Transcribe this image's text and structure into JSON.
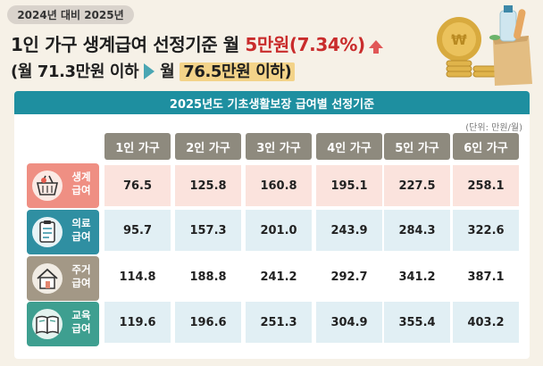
{
  "header": {
    "year_pill": "2024년 대비 2025년",
    "headline_part1": "1인 가구 생계급여 선정기준 월 ",
    "headline_accent": "5만원(7.34%)",
    "subline_open": "(월 71.3만원 이하",
    "subline_mid": "월 ",
    "subline_highlight": "76.5만원 이하)"
  },
  "panel": {
    "title": "2025년도 기초생활보장 급여별 선정기준",
    "unit": "(단위: 만원/월)"
  },
  "table": {
    "columns": [
      "1인 가구",
      "2인 가구",
      "3인 가구",
      "4인 가구",
      "5인 가구",
      "6인 가구"
    ],
    "rows": [
      {
        "label1": "생계",
        "label2": "급여",
        "icon": "market-basket-icon",
        "values": [
          "76.5",
          "125.8",
          "160.8",
          "195.1",
          "227.5",
          "258.1"
        ]
      },
      {
        "label1": "의료",
        "label2": "급여",
        "icon": "clipboard-icon",
        "values": [
          "95.7",
          "157.3",
          "201.0",
          "243.9",
          "284.3",
          "322.6"
        ]
      },
      {
        "label1": "주거",
        "label2": "급여",
        "icon": "house-icon",
        "values": [
          "114.8",
          "188.8",
          "241.2",
          "292.7",
          "341.2",
          "387.1"
        ]
      },
      {
        "label1": "교육",
        "label2": "급여",
        "icon": "book-icon",
        "values": [
          "119.6",
          "196.6",
          "251.3",
          "304.9",
          "355.4",
          "403.2"
        ]
      }
    ]
  },
  "colors": {
    "teal": "#1e8fa0",
    "header_gray": "#8e8a7e",
    "row_pink": "#fbe3dd",
    "row_blue": "#e1eff4",
    "row_white": "#ffffff",
    "label_pink": "#ef8f83",
    "label_teal": "#2f8fa2",
    "label_brown": "#a39886",
    "label_green": "#3e9f90",
    "accent_red": "#c92c2c"
  }
}
